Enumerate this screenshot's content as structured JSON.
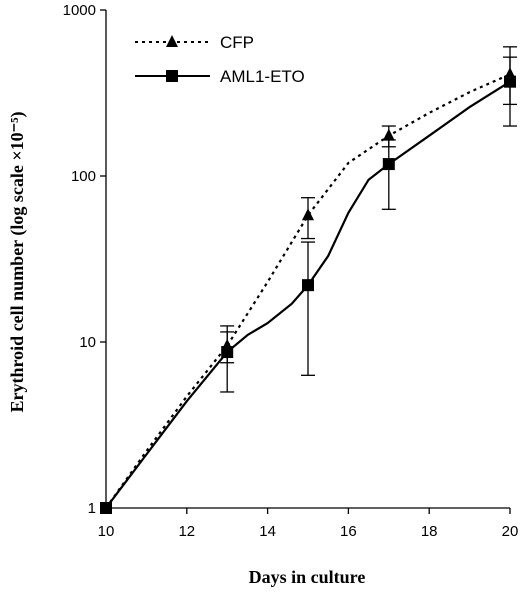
{
  "chart_data": {
    "type": "line",
    "title": "",
    "xlabel": "Days in culture",
    "ylabel": "Erythroid cell number (log scale ×10⁻⁵)",
    "y_scale": "log",
    "xlim": [
      10,
      20
    ],
    "ylim": [
      1,
      1000
    ],
    "x_ticks": [
      "10",
      "12",
      "14",
      "16",
      "18",
      "20"
    ],
    "y_ticks": [
      "1",
      "10",
      "100",
      "1000"
    ],
    "grid": false,
    "legend_position": "top-left",
    "series": [
      {
        "name": "CFP",
        "marker": "triangle",
        "line_style": "dotted",
        "color": "#000000",
        "x": [
          10,
          13,
          15,
          17,
          20
        ],
        "y": [
          1,
          9.5,
          58,
          175,
          410
        ],
        "err_low": [
          1,
          7.5,
          42,
          150,
          270
        ],
        "err_high": [
          1,
          12.5,
          74,
          200,
          600
        ],
        "curve": [
          [
            10,
            1
          ],
          [
            11,
            2.2
          ],
          [
            12,
            4.7
          ],
          [
            13,
            9.5
          ],
          [
            14,
            23
          ],
          [
            15,
            58
          ],
          [
            16,
            120
          ],
          [
            17,
            175
          ],
          [
            18,
            240
          ],
          [
            19,
            320
          ],
          [
            20,
            410
          ]
        ]
      },
      {
        "name": "AML1-ETO",
        "marker": "square",
        "line_style": "solid",
        "color": "#000000",
        "x": [
          10,
          13,
          15,
          17,
          20
        ],
        "y": [
          1,
          8.7,
          22,
          118,
          370
        ],
        "err_low": [
          1,
          5,
          6.3,
          63,
          200
        ],
        "err_high": [
          1,
          11.5,
          40,
          165,
          520
        ],
        "curve": [
          [
            10,
            1
          ],
          [
            11,
            2.1
          ],
          [
            12,
            4.4
          ],
          [
            13,
            8.7
          ],
          [
            13.5,
            11
          ],
          [
            14,
            13
          ],
          [
            14.6,
            17
          ],
          [
            15,
            22
          ],
          [
            15.5,
            33
          ],
          [
            16,
            60
          ],
          [
            16.5,
            95
          ],
          [
            17,
            118
          ],
          [
            18,
            175
          ],
          [
            19,
            260
          ],
          [
            20,
            370
          ]
        ]
      }
    ]
  }
}
